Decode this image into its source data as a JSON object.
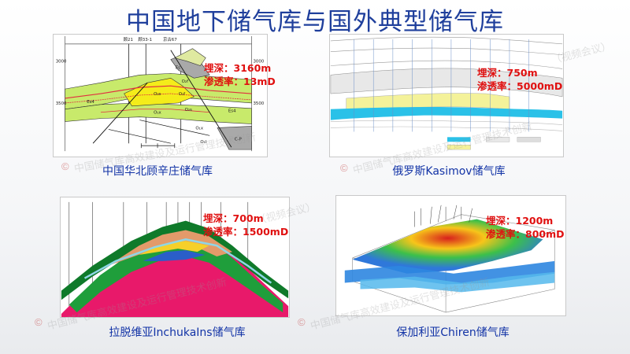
{
  "title": "中国地下储气库与国外典型储气库",
  "colors": {
    "title": "#1f3f9c",
    "annotation": "#e01010",
    "caption": "#1233a6"
  },
  "panels": [
    {
      "id": "gu-xin-zhuang",
      "caption": "中国华北顾辛庄储气库",
      "depth": "埋深：3160m",
      "permeability": "渗透率：13mD",
      "well_labels": [
        "顾21",
        "顾33-1",
        "京古67"
      ],
      "depth_ticks": [
        "3000",
        "3500"
      ],
      "right_ticks": [
        "3000",
        "3500"
      ],
      "strata": [
        "Es",
        "O₂f",
        "O₂s",
        "O₁f",
        "Es4",
        "O₁x",
        "O₂s",
        "Es4",
        "O₁x",
        "O₁l",
        "C-P"
      ]
    },
    {
      "id": "kasimov",
      "caption": "俄罗斯Kasimov储气库",
      "depth": "埋深：750m",
      "permeability": "渗透率：5000mD"
    },
    {
      "id": "inchukalns",
      "caption": "拉脱维亚InchukaIns储气库",
      "depth": "埋深：700m",
      "permeability": "渗透率：1500mD"
    },
    {
      "id": "chiren",
      "caption": "保加利亚Chiren储气库",
      "depth": "埋深：1200m",
      "permeability": "渗透率：800mD"
    }
  ],
  "watermark": {
    "text_1": "中国储气库高效建设及运行管理技术创新",
    "text_2": "（视频会议）",
    "symbol": "©"
  }
}
